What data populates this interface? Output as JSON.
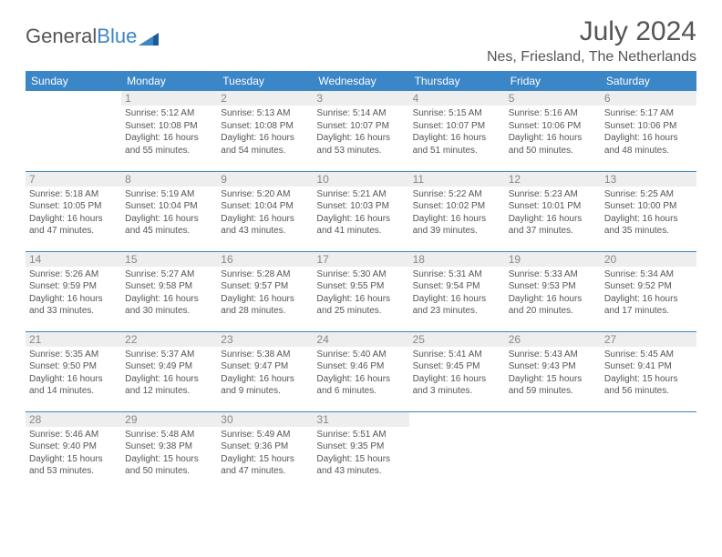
{
  "header": {
    "logo_general": "General",
    "logo_blue": "Blue",
    "month_title": "July 2024",
    "location": "Nes, Friesland, The Netherlands"
  },
  "colors": {
    "accent": "#3b86c6",
    "text": "#555555",
    "day_bg": "#eeeeee",
    "background": "#ffffff"
  },
  "dayHeaders": [
    "Sunday",
    "Monday",
    "Tuesday",
    "Wednesday",
    "Thursday",
    "Friday",
    "Saturday"
  ],
  "weeks": [
    [
      null,
      {
        "day": "1",
        "sunrise": "Sunrise: 5:12 AM",
        "sunset": "Sunset: 10:08 PM",
        "daylight1": "Daylight: 16 hours",
        "daylight2": "and 55 minutes."
      },
      {
        "day": "2",
        "sunrise": "Sunrise: 5:13 AM",
        "sunset": "Sunset: 10:08 PM",
        "daylight1": "Daylight: 16 hours",
        "daylight2": "and 54 minutes."
      },
      {
        "day": "3",
        "sunrise": "Sunrise: 5:14 AM",
        "sunset": "Sunset: 10:07 PM",
        "daylight1": "Daylight: 16 hours",
        "daylight2": "and 53 minutes."
      },
      {
        "day": "4",
        "sunrise": "Sunrise: 5:15 AM",
        "sunset": "Sunset: 10:07 PM",
        "daylight1": "Daylight: 16 hours",
        "daylight2": "and 51 minutes."
      },
      {
        "day": "5",
        "sunrise": "Sunrise: 5:16 AM",
        "sunset": "Sunset: 10:06 PM",
        "daylight1": "Daylight: 16 hours",
        "daylight2": "and 50 minutes."
      },
      {
        "day": "6",
        "sunrise": "Sunrise: 5:17 AM",
        "sunset": "Sunset: 10:06 PM",
        "daylight1": "Daylight: 16 hours",
        "daylight2": "and 48 minutes."
      }
    ],
    [
      {
        "day": "7",
        "sunrise": "Sunrise: 5:18 AM",
        "sunset": "Sunset: 10:05 PM",
        "daylight1": "Daylight: 16 hours",
        "daylight2": "and 47 minutes."
      },
      {
        "day": "8",
        "sunrise": "Sunrise: 5:19 AM",
        "sunset": "Sunset: 10:04 PM",
        "daylight1": "Daylight: 16 hours",
        "daylight2": "and 45 minutes."
      },
      {
        "day": "9",
        "sunrise": "Sunrise: 5:20 AM",
        "sunset": "Sunset: 10:04 PM",
        "daylight1": "Daylight: 16 hours",
        "daylight2": "and 43 minutes."
      },
      {
        "day": "10",
        "sunrise": "Sunrise: 5:21 AM",
        "sunset": "Sunset: 10:03 PM",
        "daylight1": "Daylight: 16 hours",
        "daylight2": "and 41 minutes."
      },
      {
        "day": "11",
        "sunrise": "Sunrise: 5:22 AM",
        "sunset": "Sunset: 10:02 PM",
        "daylight1": "Daylight: 16 hours",
        "daylight2": "and 39 minutes."
      },
      {
        "day": "12",
        "sunrise": "Sunrise: 5:23 AM",
        "sunset": "Sunset: 10:01 PM",
        "daylight1": "Daylight: 16 hours",
        "daylight2": "and 37 minutes."
      },
      {
        "day": "13",
        "sunrise": "Sunrise: 5:25 AM",
        "sunset": "Sunset: 10:00 PM",
        "daylight1": "Daylight: 16 hours",
        "daylight2": "and 35 minutes."
      }
    ],
    [
      {
        "day": "14",
        "sunrise": "Sunrise: 5:26 AM",
        "sunset": "Sunset: 9:59 PM",
        "daylight1": "Daylight: 16 hours",
        "daylight2": "and 33 minutes."
      },
      {
        "day": "15",
        "sunrise": "Sunrise: 5:27 AM",
        "sunset": "Sunset: 9:58 PM",
        "daylight1": "Daylight: 16 hours",
        "daylight2": "and 30 minutes."
      },
      {
        "day": "16",
        "sunrise": "Sunrise: 5:28 AM",
        "sunset": "Sunset: 9:57 PM",
        "daylight1": "Daylight: 16 hours",
        "daylight2": "and 28 minutes."
      },
      {
        "day": "17",
        "sunrise": "Sunrise: 5:30 AM",
        "sunset": "Sunset: 9:55 PM",
        "daylight1": "Daylight: 16 hours",
        "daylight2": "and 25 minutes."
      },
      {
        "day": "18",
        "sunrise": "Sunrise: 5:31 AM",
        "sunset": "Sunset: 9:54 PM",
        "daylight1": "Daylight: 16 hours",
        "daylight2": "and 23 minutes."
      },
      {
        "day": "19",
        "sunrise": "Sunrise: 5:33 AM",
        "sunset": "Sunset: 9:53 PM",
        "daylight1": "Daylight: 16 hours",
        "daylight2": "and 20 minutes."
      },
      {
        "day": "20",
        "sunrise": "Sunrise: 5:34 AM",
        "sunset": "Sunset: 9:52 PM",
        "daylight1": "Daylight: 16 hours",
        "daylight2": "and 17 minutes."
      }
    ],
    [
      {
        "day": "21",
        "sunrise": "Sunrise: 5:35 AM",
        "sunset": "Sunset: 9:50 PM",
        "daylight1": "Daylight: 16 hours",
        "daylight2": "and 14 minutes."
      },
      {
        "day": "22",
        "sunrise": "Sunrise: 5:37 AM",
        "sunset": "Sunset: 9:49 PM",
        "daylight1": "Daylight: 16 hours",
        "daylight2": "and 12 minutes."
      },
      {
        "day": "23",
        "sunrise": "Sunrise: 5:38 AM",
        "sunset": "Sunset: 9:47 PM",
        "daylight1": "Daylight: 16 hours",
        "daylight2": "and 9 minutes."
      },
      {
        "day": "24",
        "sunrise": "Sunrise: 5:40 AM",
        "sunset": "Sunset: 9:46 PM",
        "daylight1": "Daylight: 16 hours",
        "daylight2": "and 6 minutes."
      },
      {
        "day": "25",
        "sunrise": "Sunrise: 5:41 AM",
        "sunset": "Sunset: 9:45 PM",
        "daylight1": "Daylight: 16 hours",
        "daylight2": "and 3 minutes."
      },
      {
        "day": "26",
        "sunrise": "Sunrise: 5:43 AM",
        "sunset": "Sunset: 9:43 PM",
        "daylight1": "Daylight: 15 hours",
        "daylight2": "and 59 minutes."
      },
      {
        "day": "27",
        "sunrise": "Sunrise: 5:45 AM",
        "sunset": "Sunset: 9:41 PM",
        "daylight1": "Daylight: 15 hours",
        "daylight2": "and 56 minutes."
      }
    ],
    [
      {
        "day": "28",
        "sunrise": "Sunrise: 5:46 AM",
        "sunset": "Sunset: 9:40 PM",
        "daylight1": "Daylight: 15 hours",
        "daylight2": "and 53 minutes."
      },
      {
        "day": "29",
        "sunrise": "Sunrise: 5:48 AM",
        "sunset": "Sunset: 9:38 PM",
        "daylight1": "Daylight: 15 hours",
        "daylight2": "and 50 minutes."
      },
      {
        "day": "30",
        "sunrise": "Sunrise: 5:49 AM",
        "sunset": "Sunset: 9:36 PM",
        "daylight1": "Daylight: 15 hours",
        "daylight2": "and 47 minutes."
      },
      {
        "day": "31",
        "sunrise": "Sunrise: 5:51 AM",
        "sunset": "Sunset: 9:35 PM",
        "daylight1": "Daylight: 15 hours",
        "daylight2": "and 43 minutes."
      },
      null,
      null,
      null
    ]
  ]
}
